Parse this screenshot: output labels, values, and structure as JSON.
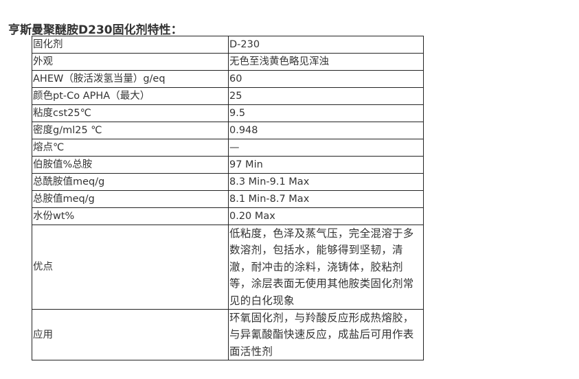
{
  "title": "亨斯曼聚醚胺D230固化剂特性：",
  "rows": [
    {
      "label": "固化剂",
      "value": "D-230"
    },
    {
      "label": "外观",
      "value": "无色至浅黄色略见浑浊"
    },
    {
      "label": "AHEW（胺活泼氢当量）g/eq",
      "value": "60"
    },
    {
      "label": "颜色pt-Co APHA（最大）",
      "value": "25"
    },
    {
      "label": "粘度cst25℃",
      "value": "9.5"
    },
    {
      "label": "密度g/ml25 ℃",
      "value": "0.948"
    },
    {
      "label": "熔点℃",
      "value": "—"
    },
    {
      "label": "伯胺值%总胺",
      "value": "97 Min"
    },
    {
      "label": "总酰胺值meq/g",
      "value": "8.3 Min-9.1 Max"
    },
    {
      "label": "总胺值meq/g",
      "value": "8.1 Min-8.7 Max"
    },
    {
      "label": "水份wt%",
      "value": "0.20 Max"
    },
    {
      "label": "优点",
      "value": "低粘度，色泽及蒸气压，完全混溶于多数溶剂，包括水，能够得到坚韧，清澈，耐冲击的涂料，浇铸体，胶粘剂等，涂层表面无使用其他胺类固化剂常见的白化现象"
    },
    {
      "label": "应用",
      "value": "环氧固化剂，与羚酸反应形成热熔胶，与异氰酸酯快速反应，成盐后可用作表面活性剂"
    }
  ]
}
